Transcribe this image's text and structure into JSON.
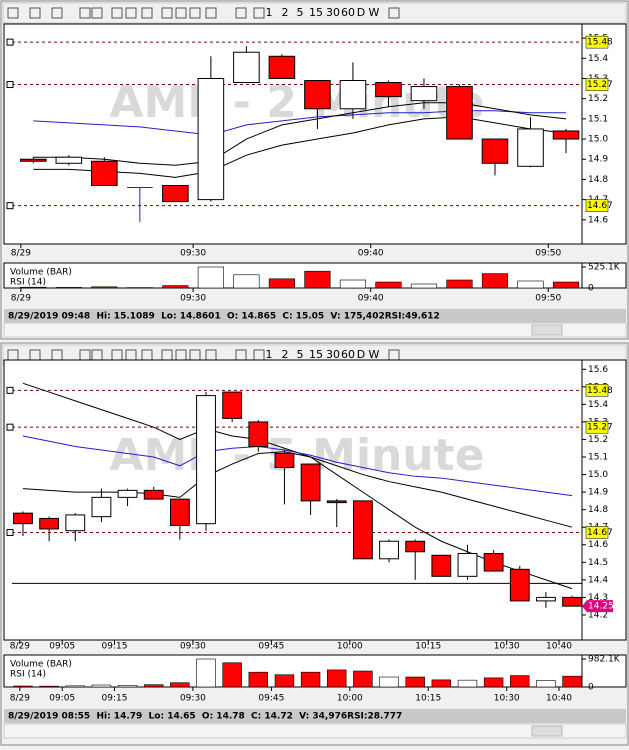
{
  "toolbar": {
    "intervals": [
      "1",
      "2",
      "5",
      "15",
      "30",
      "60",
      "D",
      "W"
    ]
  },
  "chart_data": [
    {
      "type": "candlestick",
      "watermark": "AMF - 2 Minute",
      "x": [
        561,
        563,
        565,
        567,
        569,
        571,
        573,
        575,
        577,
        579,
        581,
        583,
        585,
        587,
        589,
        591
      ],
      "open": [
        14.9,
        14.88,
        14.89,
        14.76,
        14.77,
        14.7,
        15.28,
        15.41,
        15.29,
        15.15,
        15.28,
        15.19,
        15.26,
        15.0,
        14.865,
        15.04
      ],
      "high": [
        14.91,
        14.92,
        14.91,
        14.76,
        14.77,
        15.41,
        15.46,
        15.42,
        15.29,
        15.38,
        15.29,
        15.3,
        15.27,
        15.0,
        15.1089,
        15.05
      ],
      "low": [
        14.88,
        14.87,
        14.77,
        14.59,
        14.69,
        14.69,
        15.28,
        15.3,
        15.05,
        15.1,
        15.16,
        15.15,
        15.0,
        14.82,
        14.8601,
        14.93
      ],
      "close": [
        14.89,
        14.91,
        14.77,
        14.76,
        14.69,
        15.3,
        15.43,
        15.3,
        15.15,
        15.29,
        15.21,
        15.26,
        15.0,
        14.88,
        15.05,
        15.0
      ],
      "up_color": "#ffffff",
      "down_color": "#ff0000",
      "flat_color": "#2020d0",
      "overlays": [
        {
          "color": "#2020d0",
          "values": [
            15.09,
            15.08,
            15.07,
            15.06,
            15.04,
            15.02,
            15.07,
            15.09,
            15.11,
            15.12,
            15.13,
            15.13,
            15.14,
            15.14,
            15.13,
            15.13
          ]
        },
        {
          "color": "#000000",
          "values": [
            14.91,
            14.91,
            14.9,
            14.88,
            14.87,
            14.89,
            15.0,
            15.07,
            15.1,
            15.13,
            15.16,
            15.18,
            15.18,
            15.15,
            15.12,
            15.1
          ]
        },
        {
          "color": "#000000",
          "values": [
            14.85,
            14.85,
            14.84,
            14.83,
            14.81,
            14.84,
            14.92,
            14.97,
            15.0,
            15.03,
            15.07,
            15.1,
            15.11,
            15.08,
            15.05,
            15.03
          ]
        }
      ],
      "levels": [
        15.48,
        15.27,
        14.67
      ],
      "level_color": "#ffff00",
      "xlim": [
        559.8,
        591.9
      ],
      "xticks": [
        {
          "value": 560.3,
          "label": "8/29"
        },
        {
          "value": 570,
          "label": "09:30"
        },
        {
          "value": 580,
          "label": "09:40"
        },
        {
          "value": 590,
          "label": "09:50"
        }
      ],
      "ylim": [
        14.5,
        15.55
      ],
      "yticks": [
        14.6,
        14.7,
        14.8,
        14.9,
        {
          "value": 15,
          "label": "15.0"
        },
        15.1,
        15.2,
        15.3,
        15.4,
        15.5
      ],
      "volume": {
        "title": "Volume (BAR)",
        "values": [
          20000,
          15000,
          30000,
          10000,
          60000,
          525100,
          330000,
          230000,
          420000,
          200000,
          150000,
          100000,
          200000,
          360000,
          175402,
          150000
        ],
        "ylim": [
          0,
          525100
        ],
        "yticks": [
          0,
          {
            "value": 525100,
            "label": "525.1K"
          }
        ]
      },
      "rsi_label": "RSI (14)",
      "status": "8/29/2019 09:48  Hi: 15.1089  Lo: 14.8601  O: 14.865  C: 15.05  V: 175,402RSI:49.612"
    },
    {
      "type": "candlestick",
      "watermark": "AMF - 5 Minute",
      "x": [
        537.5,
        542.5,
        547.5,
        552.5,
        557.5,
        562.5,
        567.5,
        572.5,
        577.5,
        582.5,
        587.5,
        592.5,
        597.5,
        602.5,
        607.5,
        612.5,
        617.5,
        622.5,
        627.5,
        632.5,
        637.5,
        642.5
      ],
      "open": [
        14.78,
        14.75,
        14.68,
        14.76,
        14.87,
        14.91,
        14.86,
        14.72,
        15.47,
        15.3,
        15.12,
        15.06,
        14.85,
        14.85,
        14.52,
        14.62,
        14.54,
        14.42,
        14.55,
        14.46,
        14.28,
        14.3
      ],
      "high": [
        14.79,
        14.76,
        14.78,
        14.92,
        14.92,
        14.93,
        14.86,
        15.47,
        15.47,
        15.31,
        15.14,
        15.06,
        14.86,
        14.85,
        14.63,
        14.63,
        14.54,
        14.6,
        14.57,
        14.48,
        14.33,
        14.31
      ],
      "low": [
        14.65,
        14.62,
        14.62,
        14.73,
        14.82,
        14.86,
        14.63,
        14.68,
        15.3,
        15.13,
        14.83,
        14.77,
        14.7,
        14.52,
        14.5,
        14.4,
        14.42,
        14.4,
        14.45,
        14.28,
        14.24,
        14.25
      ],
      "close": [
        14.72,
        14.69,
        14.77,
        14.87,
        14.91,
        14.86,
        14.71,
        15.45,
        15.32,
        15.16,
        15.04,
        14.85,
        14.84,
        14.52,
        14.62,
        14.56,
        14.42,
        14.55,
        14.45,
        14.28,
        14.3,
        14.25
      ],
      "up_color": "#ffffff",
      "down_color": "#ff0000",
      "flat_color": "#2020d0",
      "overlays": [
        {
          "color": "#000000",
          "values": [
            15.52,
            15.47,
            15.42,
            15.37,
            15.32,
            15.27,
            15.2,
            15.26,
            15.22,
            15.2,
            15.15,
            15.1,
            15.05,
            15.0,
            14.96,
            14.93,
            14.9,
            14.86,
            14.82,
            14.78,
            14.74,
            14.7
          ]
        },
        {
          "color": "#2020d0",
          "values": [
            15.22,
            15.19,
            15.16,
            15.14,
            15.12,
            15.1,
            15.05,
            15.13,
            15.15,
            15.16,
            15.14,
            15.11,
            15.07,
            15.04,
            15.01,
            14.99,
            14.98,
            14.96,
            14.94,
            14.92,
            14.9,
            14.88
          ]
        },
        {
          "color": "#000000",
          "values": [
            14.92,
            14.91,
            14.9,
            14.9,
            14.9,
            14.89,
            14.87,
            14.99,
            15.06,
            15.12,
            15.13,
            15.1,
            15.0,
            14.9,
            14.8,
            14.7,
            14.62,
            14.56,
            14.5,
            14.45,
            14.4,
            14.35
          ]
        }
      ],
      "levels": [
        15.48,
        15.27,
        14.67
      ],
      "level_color": "#ffff00",
      "support_line": 14.38,
      "last_price": {
        "value": 14.25,
        "color": "#e0007a"
      },
      "xlim": [
        535.4,
        644.4
      ],
      "xticks": [
        {
          "value": 536.9,
          "label": "8/29"
        },
        {
          "value": 545,
          "label": "09:05"
        },
        {
          "value": 555,
          "label": "09:15"
        },
        {
          "value": 570,
          "label": "09:30"
        },
        {
          "value": 585,
          "label": "09:45"
        },
        {
          "value": 600,
          "label": "10:00"
        },
        {
          "value": 615,
          "label": "10:15"
        },
        {
          "value": 630,
          "label": "10:30"
        },
        {
          "value": 640,
          "label": "10:40"
        }
      ],
      "ylim": [
        14.08,
        15.63
      ],
      "yticks": [
        14.2,
        14.3,
        14.4,
        14.5,
        14.6,
        14.7,
        14.8,
        14.9,
        {
          "value": 15,
          "label": "15.0"
        },
        15.1,
        15.2,
        15.3,
        15.4,
        15.5,
        15.6
      ],
      "volume": {
        "title": "Volume (BAR)",
        "values": [
          34976,
          30000,
          40000,
          70000,
          60000,
          80000,
          150000,
          982100,
          850000,
          520000,
          430000,
          520000,
          600000,
          560000,
          350000,
          350000,
          250000,
          240000,
          320000,
          400000,
          230000,
          380000
        ],
        "ylim": [
          0,
          982100
        ],
        "yticks": [
          0,
          {
            "value": 982100,
            "label": "982.1K"
          }
        ]
      },
      "rsi_label": "RSI (14)",
      "status": "8/29/2019 08:55  Hi: 14.79  Lo: 14.65  O: 14.78  C: 14.72  V: 34,976RSI:28.777"
    }
  ]
}
